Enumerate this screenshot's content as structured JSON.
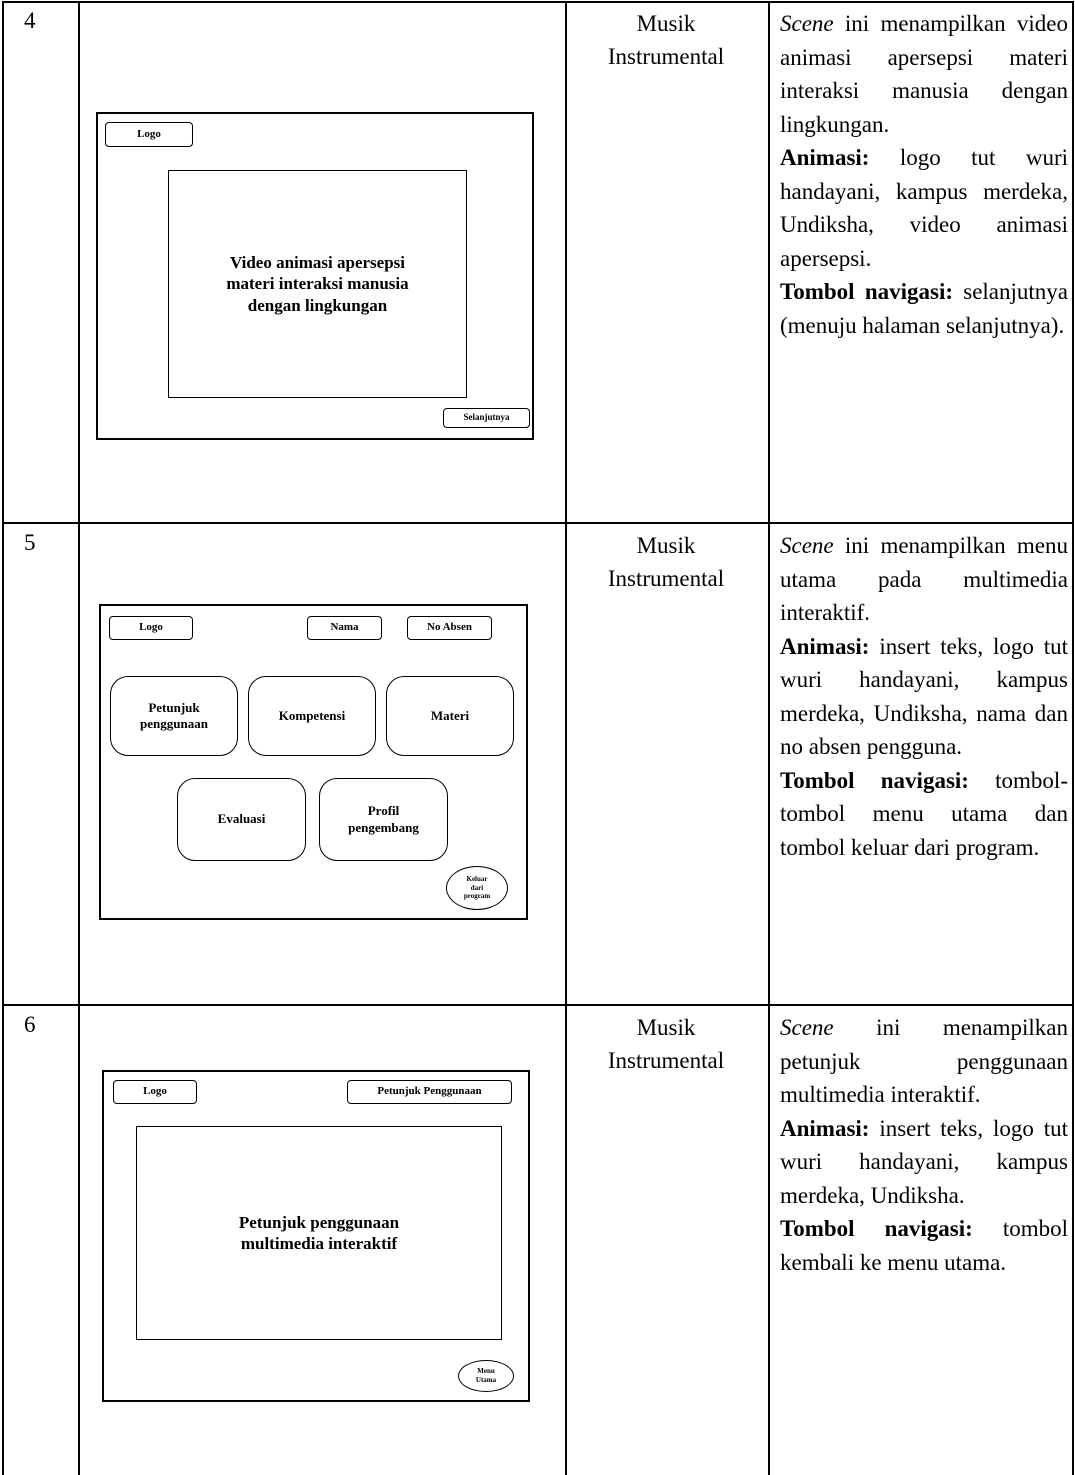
{
  "table": {
    "rows": [
      {
        "number": "4",
        "storyboard": [
          "Logo",
          [
            "Video animasi apersepsi",
            "materi interaksi manusia",
            "dengan lingkungan"
          ],
          "Selanjutnya"
        ],
        "audio": "Musik Instrumental",
        "description": {
          "scene": "Scene",
          "intro": "ini menampilkan video animasi apersepsi materi interaksi manusia dengan lingkungan.",
          "animation_label": "Animasi:",
          "animation": "logo tut wuri handayani, kampus merdeka, Undiksha, video animasi apersepsi.",
          "navigation_label": "Tombol navigasi:",
          "navigation": "selanjutnya (menuju halaman selanjutnya)."
        }
      },
      {
        "number": "5",
        "storyboard": [
          "Logo",
          "Nama",
          "No Absen",
          [
            "Petunjuk",
            "penggunaan"
          ],
          "Kompetensi",
          "Materi",
          "Evaluasi",
          [
            "Profil",
            "pengembang"
          ],
          [
            "Keluar",
            "dari",
            "program"
          ]
        ],
        "audio": "Musik Instrumental",
        "description": {
          "scene": "Scene",
          "intro": "ini menampilkan menu utama pada multimedia interaktif.",
          "animation_label": "Animasi:",
          "animation": "insert teks, logo tut wuri handayani, kampus merdeka, Undiksha, nama dan no absen pengguna.",
          "navigation_label": "Tombol navigasi:",
          "navigation": "tombol-tombol menu utama dan tombol keluar dari program."
        }
      },
      {
        "number": "6",
        "storyboard": [
          "Logo",
          "Petunjuk Penggunaan",
          [
            "Petunjuk penggunaan",
            "multimedia interaktif"
          ],
          [
            "Menu",
            "Utama"
          ]
        ],
        "audio": "Musik Instrumental",
        "description": {
          "scene": "Scene",
          "intro": "ini menampilkan petunjuk penggunaan multimedia interaktif.",
          "animation_label": "Animasi:",
          "animation": "insert teks, logo tut wuri handayani, kampus merdeka, Undiksha.",
          "navigation_label": "Tombol navigasi:",
          "navigation": "tombol kembali ke menu utama."
        }
      }
    ]
  }
}
